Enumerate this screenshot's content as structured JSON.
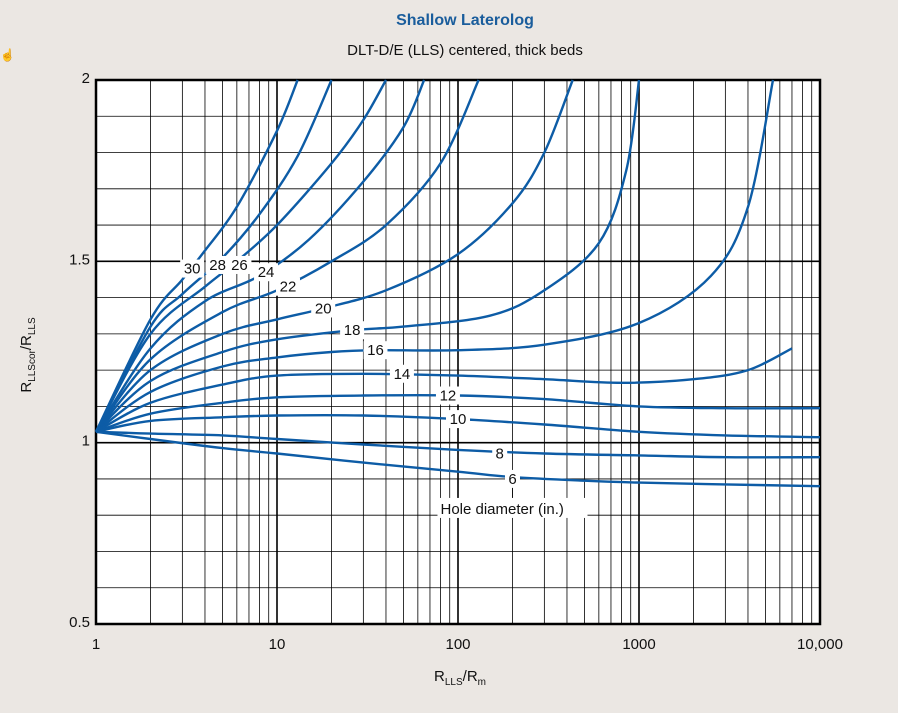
{
  "chart_data": {
    "type": "line",
    "title": "Shallow Laterolog",
    "subtitle": "DLT-D/E (LLS) centered, thick beds",
    "ylabel": {
      "main": "R",
      "sub1": "LLScor",
      "sep": "/R",
      "sub2": "LLS"
    },
    "xlabel": {
      "main": "R",
      "sub1": "LLS",
      "sep": "/R",
      "sub2": "m"
    },
    "xscale": "log",
    "xlim": [
      1,
      10000
    ],
    "ylim": [
      0.5,
      2
    ],
    "x_ticks": [
      {
        "value": 1,
        "label": "1"
      },
      {
        "value": 10,
        "label": "10"
      },
      {
        "value": 100,
        "label": "100"
      },
      {
        "value": 1000,
        "label": "1000"
      },
      {
        "value": 10000,
        "label": "10,000"
      }
    ],
    "y_ticks": [
      {
        "value": 0.5,
        "label": "0.5"
      },
      {
        "value": 1,
        "label": "1"
      },
      {
        "value": 1.5,
        "label": "1.5"
      },
      {
        "value": 2,
        "label": "2"
      }
    ],
    "grid": true,
    "line_color": "#0d5ca6",
    "annotation": "Hole diameter (in.)",
    "series": [
      {
        "name": "6",
        "label_at": [
          200,
          0.9
        ],
        "points": [
          [
            1,
            1.03
          ],
          [
            2,
            1.01
          ],
          [
            5,
            0.985
          ],
          [
            10,
            0.97
          ],
          [
            30,
            0.945
          ],
          [
            100,
            0.92
          ],
          [
            200,
            0.905
          ],
          [
            500,
            0.895
          ],
          [
            1000,
            0.89
          ],
          [
            3000,
            0.885
          ],
          [
            10000,
            0.88
          ]
        ]
      },
      {
        "name": "8",
        "label_at": [
          170,
          0.97
        ],
        "points": [
          [
            1,
            1.03
          ],
          [
            2,
            1.025
          ],
          [
            5,
            1.02
          ],
          [
            10,
            1.01
          ],
          [
            30,
            0.995
          ],
          [
            100,
            0.98
          ],
          [
            300,
            0.97
          ],
          [
            1000,
            0.965
          ],
          [
            3000,
            0.96
          ],
          [
            10000,
            0.96
          ]
        ]
      },
      {
        "name": "10",
        "label_at": [
          100,
          1.065
        ],
        "points": [
          [
            1,
            1.03
          ],
          [
            2,
            1.06
          ],
          [
            5,
            1.07
          ],
          [
            10,
            1.075
          ],
          [
            30,
            1.075
          ],
          [
            100,
            1.065
          ],
          [
            300,
            1.05
          ],
          [
            1000,
            1.03
          ],
          [
            3000,
            1.02
          ],
          [
            10000,
            1.015
          ]
        ]
      },
      {
        "name": "12",
        "label_at": [
          88,
          1.13
        ],
        "points": [
          [
            1,
            1.03
          ],
          [
            2,
            1.08
          ],
          [
            5,
            1.11
          ],
          [
            10,
            1.125
          ],
          [
            30,
            1.13
          ],
          [
            100,
            1.13
          ],
          [
            300,
            1.12
          ],
          [
            1000,
            1.1
          ],
          [
            3000,
            1.095
          ],
          [
            10000,
            1.095
          ]
        ]
      },
      {
        "name": "14",
        "label_at": [
          49,
          1.19
        ],
        "points": [
          [
            1,
            1.03
          ],
          [
            2,
            1.11
          ],
          [
            5,
            1.16
          ],
          [
            10,
            1.185
          ],
          [
            30,
            1.19
          ],
          [
            100,
            1.185
          ],
          [
            300,
            1.175
          ],
          [
            800,
            1.165
          ],
          [
            2000,
            1.175
          ],
          [
            4000,
            1.2
          ],
          [
            7000,
            1.26
          ]
        ]
      },
      {
        "name": "16",
        "label_at": [
          35,
          1.255
        ],
        "points": [
          [
            1,
            1.03
          ],
          [
            2,
            1.14
          ],
          [
            5,
            1.21
          ],
          [
            10,
            1.235
          ],
          [
            20,
            1.25
          ],
          [
            35,
            1.255
          ],
          [
            100,
            1.255
          ],
          [
            300,
            1.27
          ],
          [
            1000,
            1.33
          ],
          [
            2500,
            1.46
          ],
          [
            4000,
            1.65
          ],
          [
            5500,
            2.0
          ]
        ]
      },
      {
        "name": "18",
        "label_at": [
          26,
          1.31
        ],
        "points": [
          [
            1,
            1.03
          ],
          [
            2,
            1.17
          ],
          [
            5,
            1.25
          ],
          [
            10,
            1.285
          ],
          [
            26,
            1.31
          ],
          [
            50,
            1.32
          ],
          [
            150,
            1.35
          ],
          [
            300,
            1.42
          ],
          [
            600,
            1.55
          ],
          [
            850,
            1.75
          ],
          [
            1000,
            2.0
          ]
        ]
      },
      {
        "name": "20",
        "label_at": [
          18,
          1.37
        ],
        "points": [
          [
            1,
            1.03
          ],
          [
            2,
            1.2
          ],
          [
            5,
            1.3
          ],
          [
            10,
            1.34
          ],
          [
            18,
            1.37
          ],
          [
            40,
            1.42
          ],
          [
            100,
            1.52
          ],
          [
            200,
            1.66
          ],
          [
            300,
            1.8
          ],
          [
            430,
            2.0
          ]
        ]
      },
      {
        "name": "22",
        "label_at": [
          11.5,
          1.43
        ],
        "points": [
          [
            1,
            1.03
          ],
          [
            2,
            1.23
          ],
          [
            5,
            1.36
          ],
          [
            10,
            1.42
          ],
          [
            20,
            1.5
          ],
          [
            40,
            1.6
          ],
          [
            80,
            1.77
          ],
          [
            130,
            2.0
          ]
        ]
      },
      {
        "name": "24",
        "label_at": [
          8.7,
          1.47
        ],
        "points": [
          [
            1,
            1.03
          ],
          [
            2,
            1.26
          ],
          [
            4,
            1.39
          ],
          [
            8,
            1.46
          ],
          [
            15,
            1.56
          ],
          [
            30,
            1.72
          ],
          [
            50,
            1.87
          ],
          [
            65,
            2.0
          ]
        ]
      },
      {
        "name": "26",
        "label_at": [
          6.2,
          1.49
        ],
        "points": [
          [
            1,
            1.03
          ],
          [
            2,
            1.3
          ],
          [
            4,
            1.43
          ],
          [
            6,
            1.5
          ],
          [
            10,
            1.6
          ],
          [
            20,
            1.77
          ],
          [
            30,
            1.89
          ],
          [
            40,
            2.0
          ]
        ]
      },
      {
        "name": "28",
        "label_at": [
          4.7,
          1.49
        ],
        "points": [
          [
            1,
            1.03
          ],
          [
            2,
            1.32
          ],
          [
            3,
            1.41
          ],
          [
            5,
            1.51
          ],
          [
            8,
            1.63
          ],
          [
            13,
            1.79
          ],
          [
            20,
            2.0
          ]
        ]
      },
      {
        "name": "30",
        "label_at": [
          3.4,
          1.48
        ],
        "points": [
          [
            1,
            1.03
          ],
          [
            2,
            1.34
          ],
          [
            3,
            1.45
          ],
          [
            4,
            1.53
          ],
          [
            6,
            1.65
          ],
          [
            10,
            1.86
          ],
          [
            13,
            2.0
          ]
        ]
      }
    ]
  }
}
